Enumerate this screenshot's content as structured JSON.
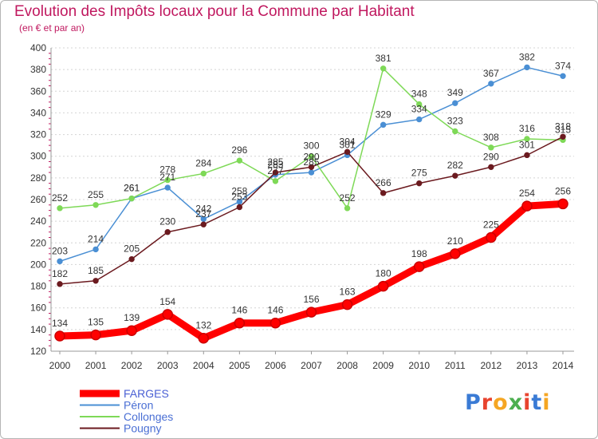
{
  "title": "Evolution des Impôts locaux pour la Commune par Habitant",
  "subtitle": "(en € et par an)",
  "logo": {
    "text": "Proxiti",
    "colors": [
      "#3a7bd5",
      "#e8442f",
      "#f5a623",
      "#4caf50",
      "#e8442f",
      "#3a7bd5",
      "#f5a623"
    ]
  },
  "chart_data": {
    "type": "line",
    "title": "Evolution des Impôts locaux pour la Commune par Habitant",
    "subtitle": "(en € et par an)",
    "xlabel": "",
    "ylabel": "",
    "x": [
      "2000",
      "2001",
      "2002",
      "2003",
      "2004",
      "2005",
      "2006",
      "2007",
      "2008",
      "2009",
      "2010",
      "2011",
      "2012",
      "2013",
      "2014"
    ],
    "ylim": [
      120,
      400
    ],
    "yticks": [
      120,
      140,
      160,
      180,
      200,
      220,
      240,
      260,
      280,
      300,
      320,
      340,
      360,
      380,
      400
    ],
    "grid": "horizontal",
    "legend_position": "bottom-left",
    "series": [
      {
        "name": "FARGES",
        "color": "#ff0000",
        "values": [
          134,
          135,
          139,
          154,
          132,
          146,
          146,
          156,
          163,
          180,
          198,
          210,
          225,
          254,
          256
        ]
      },
      {
        "name": "Péron",
        "color": "#4a8fd4",
        "values": [
          203,
          214,
          261,
          271,
          242,
          258,
          283,
          285,
          301,
          329,
          334,
          349,
          367,
          382,
          374
        ]
      },
      {
        "name": "Collonges",
        "color": "#7ed957",
        "values": [
          252,
          255,
          261,
          278,
          284,
          296,
          277,
          300,
          252,
          381,
          348,
          323,
          308,
          316,
          315
        ]
      },
      {
        "name": "Pougny",
        "color": "#6b1a1f",
        "values": [
          182,
          185,
          205,
          230,
          237,
          253,
          285,
          290,
          304,
          266,
          275,
          282,
          290,
          301,
          318
        ]
      }
    ]
  }
}
